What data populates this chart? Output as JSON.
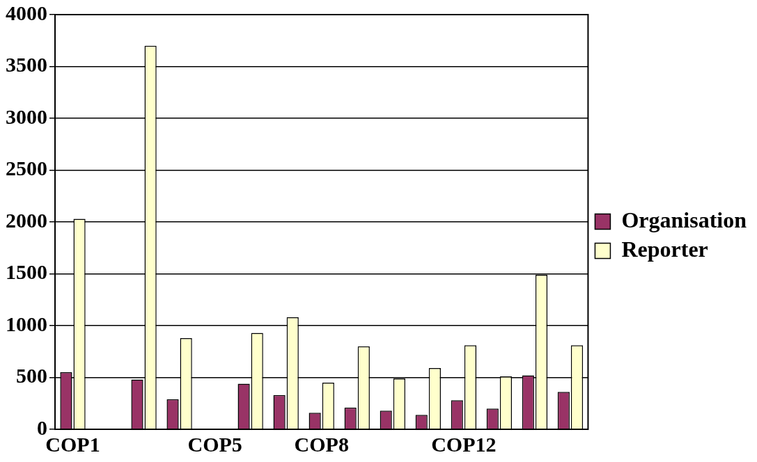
{
  "chart_data": {
    "type": "bar",
    "categories": [
      "COP1",
      null,
      null,
      null,
      "COP5",
      null,
      null,
      "COP8",
      null,
      null,
      null,
      "COP12",
      null,
      null,
      null
    ],
    "series": [
      {
        "name": "Organisation",
        "color": "#993366",
        "values": [
          550,
          null,
          480,
          290,
          null,
          440,
          330,
          160,
          210,
          180,
          140,
          280,
          200,
          520,
          360
        ]
      },
      {
        "name": "Reporter",
        "color": "#ffffcc",
        "values": [
          2030,
          null,
          3700,
          880,
          null,
          930,
          1080,
          450,
          800,
          490,
          590,
          810,
          510,
          1490,
          810
        ]
      }
    ],
    "ylim": [
      0,
      4000
    ],
    "yticks": [
      0,
      500,
      1000,
      1500,
      2000,
      2500,
      3000,
      3500,
      4000
    ],
    "grid": "y",
    "legend": "right"
  }
}
